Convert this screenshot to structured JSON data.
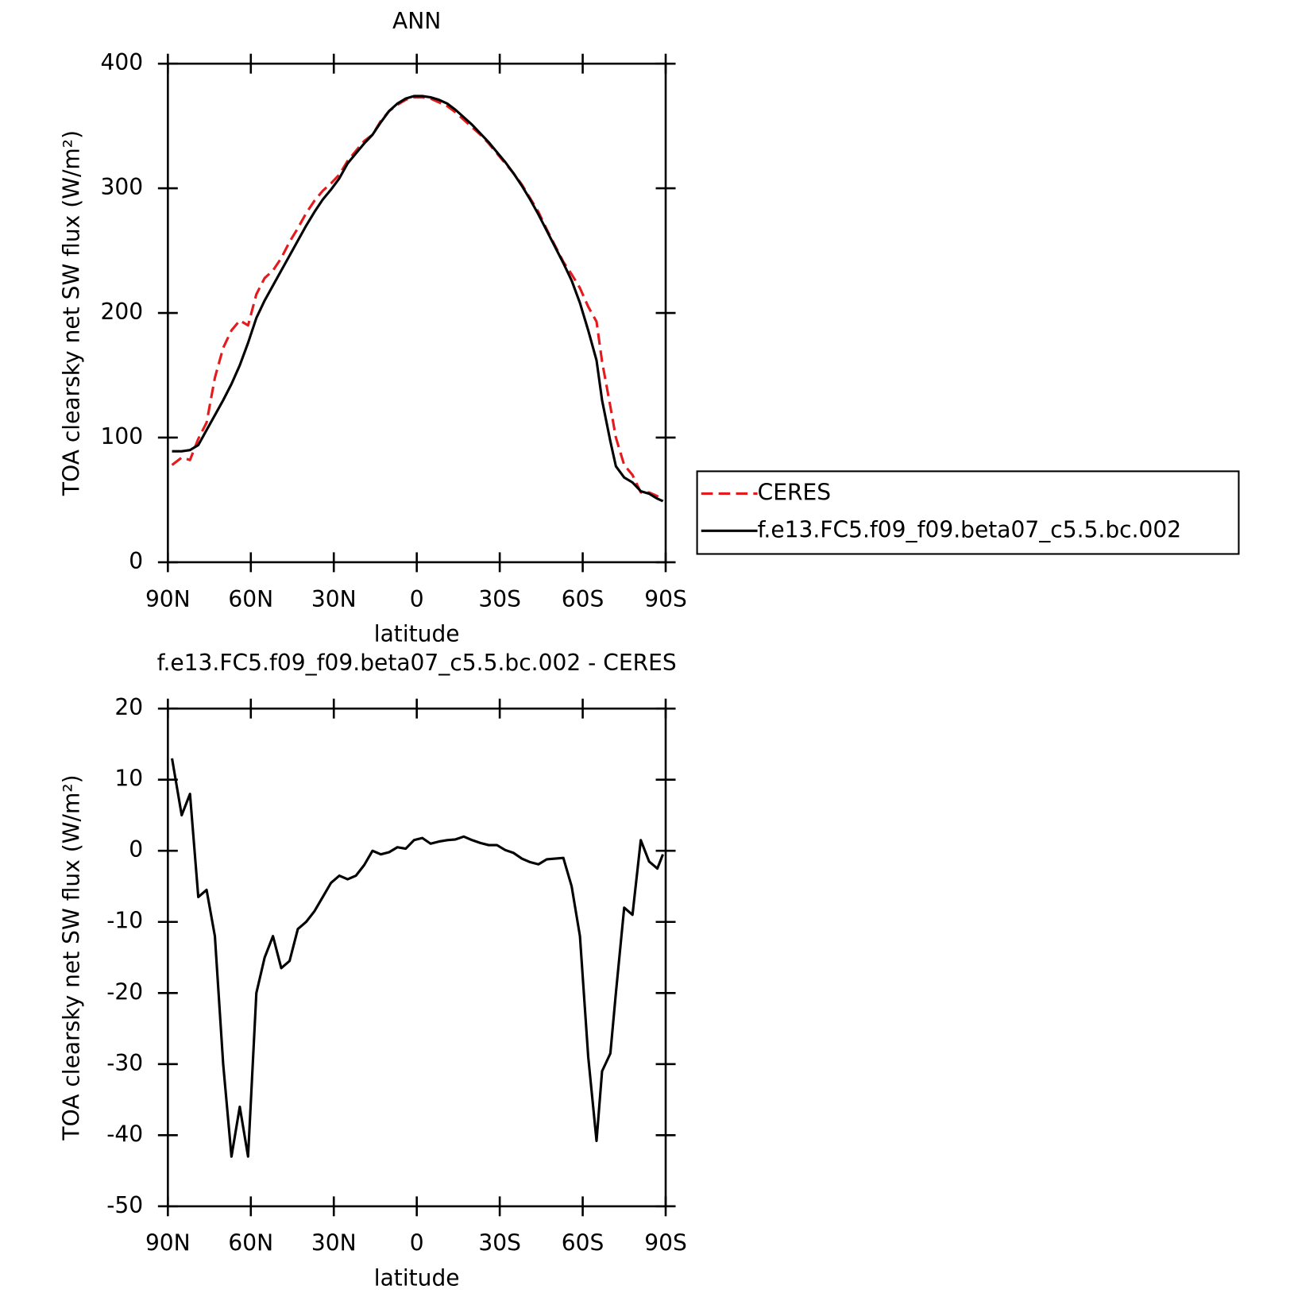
{
  "chart_data": [
    {
      "type": "line",
      "title": "ANN",
      "xlabel": "latitude",
      "ylabel": "TOA clearsky net SW flux (W/m²)",
      "xlim": [
        90,
        -90
      ],
      "ylim": [
        0,
        400
      ],
      "xticks": [
        {
          "value": 90,
          "label": "90N"
        },
        {
          "value": 60,
          "label": "60N"
        },
        {
          "value": 30,
          "label": "30N"
        },
        0,
        {
          "value": -30,
          "label": "30S"
        },
        {
          "value": -60,
          "label": "60S"
        },
        {
          "value": -90,
          "label": "90S"
        }
      ],
      "yticks": [
        0,
        100,
        200,
        300,
        400
      ],
      "legend": "right",
      "x": [
        88.5,
        85,
        82,
        79,
        76,
        73,
        70,
        67,
        64,
        61,
        58,
        55,
        52,
        49,
        46,
        43,
        40,
        37,
        34,
        31,
        28,
        25,
        22,
        19,
        16,
        13,
        10,
        7,
        4,
        1,
        -2,
        -5,
        -8,
        -11,
        -14,
        -17,
        -20,
        -23,
        -26,
        -29,
        -32,
        -35,
        -38,
        -41,
        -44,
        -47,
        -50,
        -53,
        -56,
        -59,
        -62,
        -65,
        -67,
        -70,
        -72,
        -75,
        -78,
        -81,
        -84,
        -87,
        -89
      ],
      "series": [
        {
          "name": "CERES",
          "color": "#e41a1c",
          "dashed": true,
          "values": [
            78,
            84,
            82,
            99,
            112,
            148,
            172,
            186,
            194,
            190,
            215,
            228,
            234,
            244,
            257,
            268,
            280,
            290,
            298,
            304,
            311,
            322,
            330,
            338,
            343,
            354,
            362,
            367,
            371,
            373,
            373,
            372,
            369,
            366,
            361,
            355,
            349,
            343,
            336,
            328,
            320,
            312,
            303,
            292,
            281,
            267,
            254,
            241,
            231,
            220,
            205,
            193,
            161,
            125,
            100,
            78,
            70,
            56,
            56,
            53,
            49
          ]
        },
        {
          "name": "f.e13.FC5.f09_f09.beta07_c5.5.bc.002",
          "color": "#000000",
          "dashed": false,
          "values": [
            89,
            89,
            90,
            94,
            106,
            118,
            130,
            143,
            158,
            176,
            196,
            210,
            222,
            234,
            246,
            258,
            270,
            281,
            291,
            299,
            308,
            320,
            328,
            336,
            343,
            353,
            362,
            368,
            372,
            374,
            374,
            373,
            371,
            368,
            363,
            357,
            351,
            344,
            337,
            329,
            321,
            312,
            302,
            291,
            279,
            266,
            253,
            240,
            226,
            208,
            186,
            162,
            130,
            97,
            77,
            68,
            64,
            57,
            55,
            51,
            49
          ]
        }
      ]
    },
    {
      "type": "line",
      "title": "f.e13.FC5.f09_f09.beta07_c5.5.bc.002 - CERES",
      "xlabel": "latitude",
      "ylabel": "TOA clearsky net SW flux (W/m²)",
      "xlim": [
        90,
        -90
      ],
      "ylim": [
        -50,
        20
      ],
      "xticks": [
        {
          "value": 90,
          "label": "90N"
        },
        {
          "value": 60,
          "label": "60N"
        },
        {
          "value": 30,
          "label": "30N"
        },
        0,
        {
          "value": -30,
          "label": "30S"
        },
        {
          "value": -60,
          "label": "60S"
        },
        {
          "value": -90,
          "label": "90S"
        }
      ],
      "yticks": [
        -50,
        -40,
        -30,
        -20,
        -10,
        0,
        10,
        20
      ],
      "x": [
        88.5,
        85,
        82,
        79,
        76,
        73,
        70,
        67,
        64,
        61,
        58,
        55,
        52,
        49,
        46,
        43,
        40,
        37,
        34,
        31,
        28,
        25,
        22,
        19,
        16,
        13,
        10,
        7,
        4,
        1,
        -2,
        -5,
        -8,
        -11,
        -14,
        -17,
        -20,
        -23,
        -26,
        -29,
        -32,
        -35,
        -38,
        -41,
        -44,
        -47,
        -50,
        -53,
        -56,
        -59,
        -62,
        -65,
        -67,
        -70,
        -72,
        -75,
        -78,
        -81,
        -84,
        -87,
        -89
      ],
      "series": [
        {
          "color": "#000000",
          "dashed": false,
          "values": [
            13,
            5,
            8,
            -6.5,
            -5.5,
            -12,
            -30,
            -43,
            -36,
            -43,
            -20,
            -15,
            -12,
            -16.5,
            -15.5,
            -11,
            -10,
            -8.5,
            -6.5,
            -4.5,
            -3.5,
            -4,
            -3.5,
            -2,
            0,
            -0.5,
            -0.2,
            0.5,
            0.3,
            1.5,
            1.8,
            1,
            1.3,
            1.5,
            1.6,
            2,
            1.5,
            1.1,
            0.8,
            0.8,
            0.1,
            -0.3,
            -1.1,
            -1.6,
            -1.9,
            -1.2,
            -1.1,
            -1,
            -5,
            -12,
            -29,
            -40.8,
            -31,
            -28.5,
            -20,
            -8,
            -9,
            1.5,
            -1.5,
            -2.5,
            -0.5
          ]
        }
      ]
    }
  ]
}
